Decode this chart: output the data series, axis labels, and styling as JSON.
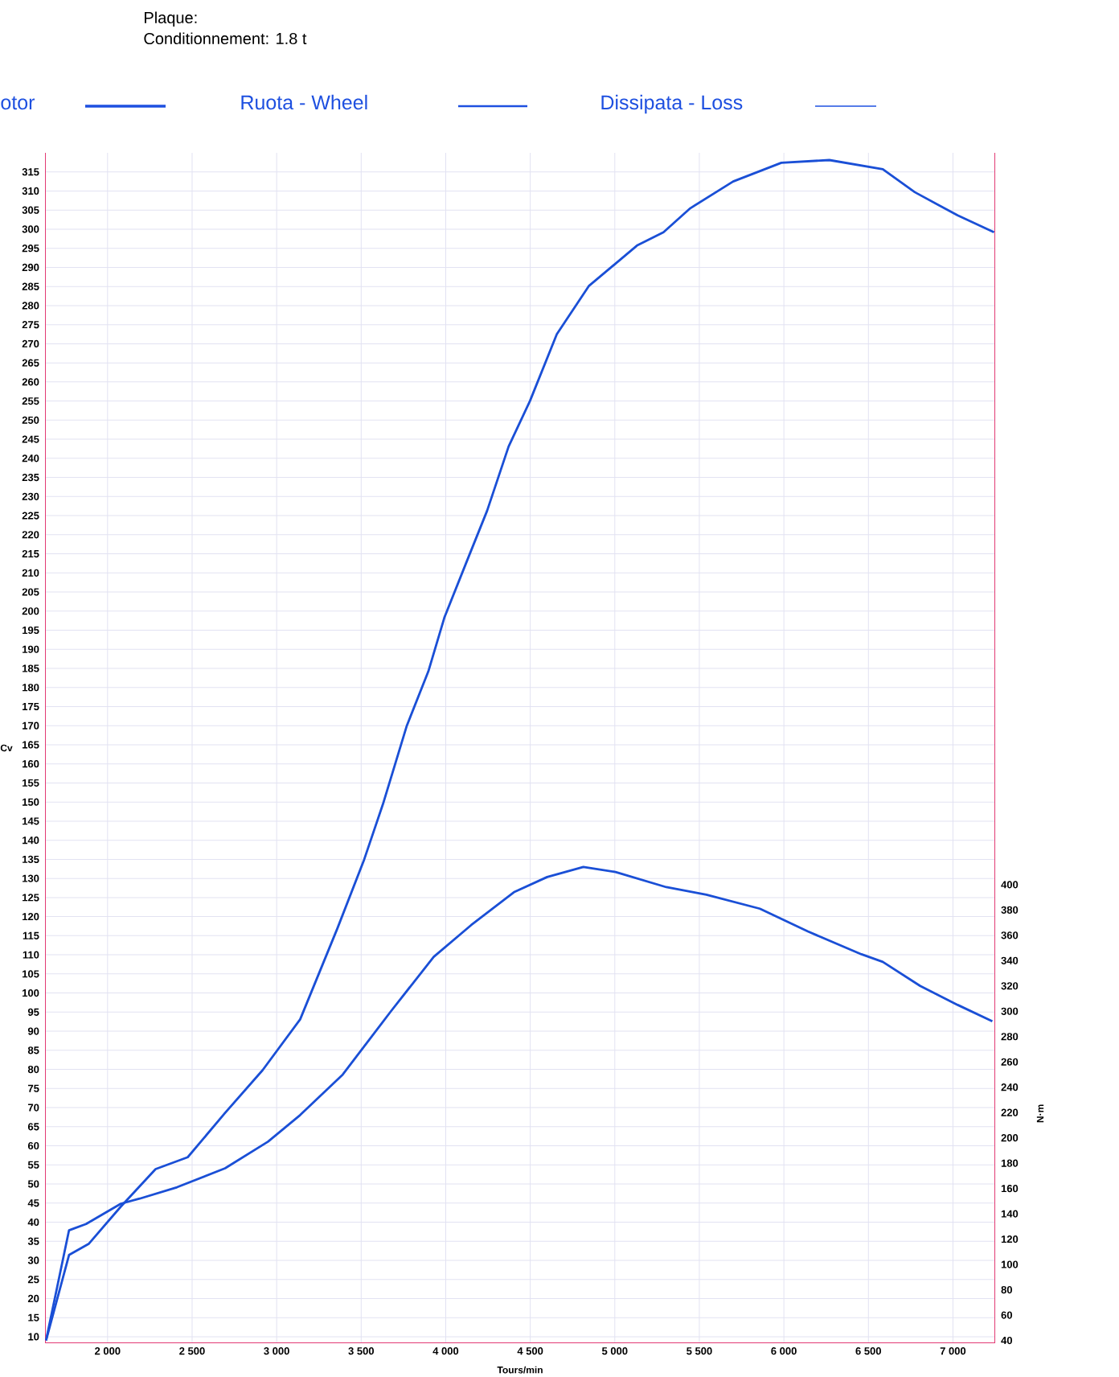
{
  "chart_data": {
    "type": "line",
    "title": "Plaque:",
    "subtitle": "Conditionnement: 1.8 t",
    "xlabel": "Tours/min",
    "ylabel": "Cv",
    "y2label": "N·m",
    "annotations": [
      "otor",
      "Ruota - Wheel",
      "Dissipata - Loss"
    ],
    "xlim": [
      1630,
      7250
    ],
    "ylim": [
      8.3,
      320
    ],
    "y2lim": [
      37.8,
      978
    ],
    "xticks": [
      {
        "value": 2000,
        "label": "2 000"
      },
      {
        "value": 2500,
        "label": "2 500"
      },
      {
        "value": 3000,
        "label": "3 000"
      },
      {
        "value": 3500,
        "label": "3 500"
      },
      {
        "value": 4000,
        "label": "4 000"
      },
      {
        "value": 4500,
        "label": "4 500"
      },
      {
        "value": 5000,
        "label": "5 000"
      },
      {
        "value": 5500,
        "label": "5 500"
      },
      {
        "value": 6000,
        "label": "6 000"
      },
      {
        "value": 6500,
        "label": "6 500"
      },
      {
        "value": 7000,
        "label": "7 000"
      }
    ],
    "yticks": [
      10,
      15,
      20,
      25,
      30,
      35,
      40,
      45,
      50,
      55,
      60,
      65,
      70,
      75,
      80,
      85,
      90,
      95,
      100,
      105,
      110,
      115,
      120,
      125,
      130,
      135,
      140,
      145,
      150,
      155,
      160,
      165,
      170,
      175,
      180,
      185,
      190,
      195,
      200,
      205,
      210,
      215,
      220,
      225,
      230,
      235,
      240,
      245,
      250,
      255,
      260,
      265,
      270,
      275,
      280,
      285,
      290,
      295,
      300,
      305,
      310,
      315
    ],
    "y2ticks": [
      40,
      60,
      80,
      100,
      120,
      140,
      160,
      180,
      200,
      220,
      240,
      260,
      280,
      300,
      320,
      340,
      360,
      380,
      400
    ],
    "grid": true,
    "line_style": "solid",
    "series": [
      {
        "color": "#1a4fd6",
        "x": [
          1636,
          1772,
          1888,
          2079,
          2284,
          2474,
          2695,
          2917,
          3139,
          3360,
          3518,
          3629,
          3770,
          3897,
          3992,
          4118,
          4245,
          4372,
          4498,
          4657,
          4846,
          5131,
          5288,
          5447,
          5700,
          5985,
          6269,
          6585,
          6774,
          7028,
          7243
        ],
        "values": [
          9,
          31.4,
          34.3,
          44.1,
          53.9,
          57,
          68.6,
          79.8,
          93.1,
          117,
          135,
          149.5,
          170,
          184.2,
          198.3,
          212.3,
          226.3,
          243.1,
          255,
          272.5,
          285.1,
          295.7,
          299.2,
          305.5,
          312.5,
          317.4,
          318.1,
          315.7,
          309.7,
          303.6,
          299.2
        ]
      },
      {
        "color": "#1a4fd6",
        "axis": "y2",
        "x": [
          1636,
          1772,
          1873,
          2079,
          2190,
          2411,
          2695,
          2949,
          3139,
          3391,
          3676,
          3929,
          4150,
          4403,
          4600,
          4814,
          5004,
          5305,
          5542,
          5858,
          6142,
          6459,
          6585,
          6806,
          7028,
          7233
        ],
        "values": [
          40,
          127,
          132,
          148,
          152,
          161,
          176,
          197,
          218,
          250,
          300,
          343,
          368,
          394,
          406,
          414,
          410,
          398,
          392,
          381,
          363,
          345,
          339,
          320,
          305,
          292
        ]
      }
    ]
  }
}
